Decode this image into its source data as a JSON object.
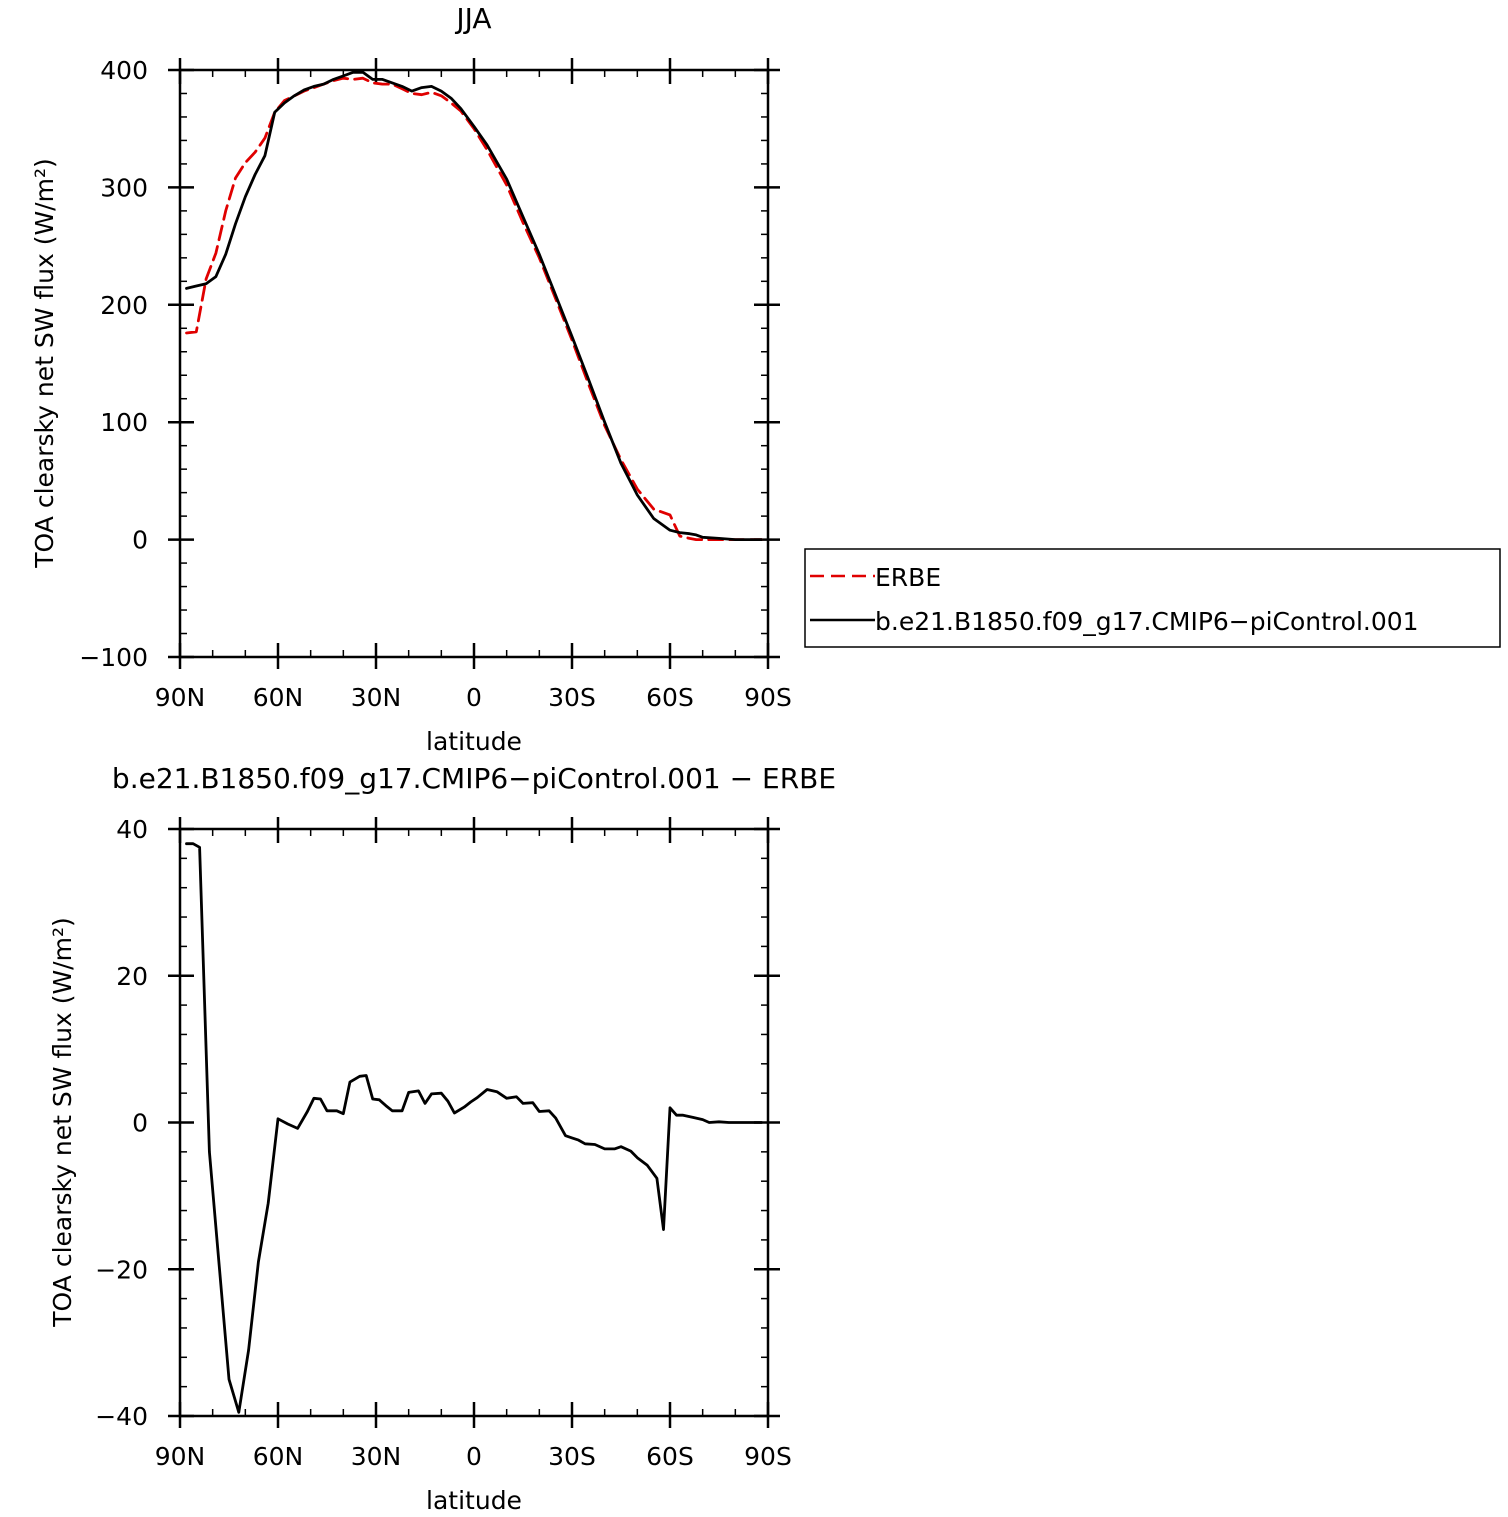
{
  "chart_data": [
    {
      "type": "line",
      "title": "JJA",
      "xlabel": "latitude",
      "ylabel": "TOA clearsky net SW flux (W/m²)",
      "xlim": [
        90,
        -90
      ],
      "ylim": [
        -100,
        400
      ],
      "xticks": [
        {
          "value": 90,
          "label": "90N"
        },
        {
          "value": 60,
          "label": "60N"
        },
        {
          "value": 30,
          "label": "30N"
        },
        {
          "value": 0,
          "label": "0"
        },
        {
          "value": -30,
          "label": "30S"
        },
        {
          "value": -60,
          "label": "60S"
        },
        {
          "value": -90,
          "label": "90S"
        }
      ],
      "yticks": [
        {
          "value": 400,
          "label": "400"
        },
        {
          "value": 300,
          "label": "300"
        },
        {
          "value": 200,
          "label": "200"
        },
        {
          "value": 100,
          "label": "100"
        },
        {
          "value": 0,
          "label": "0"
        },
        {
          "value": -100,
          "label": "−100"
        }
      ],
      "legend_position": "right",
      "series": [
        {
          "name": "ERBE",
          "color": "#e00000",
          "dash": "dashed",
          "x": [
            88,
            85,
            82,
            79,
            76,
            73,
            70,
            67,
            64,
            61,
            58,
            55,
            52,
            49,
            46,
            43,
            40,
            37,
            34,
            31,
            28,
            25,
            22,
            19,
            16,
            13,
            10,
            7,
            4,
            0,
            -4,
            -10,
            -15,
            -20,
            -25,
            -30,
            -35,
            -40,
            -45,
            -50,
            -55,
            -60,
            -63,
            -66,
            -68,
            -70,
            -75,
            -80,
            -85,
            -88
          ],
          "y": [
            176,
            177,
            222,
            244,
            280,
            308,
            321,
            330,
            342,
            364,
            374,
            378,
            382,
            385,
            388,
            391,
            393,
            392,
            393,
            389,
            388,
            388,
            384,
            380,
            379,
            381,
            378,
            372,
            365,
            350,
            332,
            302,
            270,
            240,
            205,
            170,
            133,
            97,
            68,
            43,
            26,
            21,
            3,
            1,
            0,
            0,
            0,
            0,
            0,
            0
          ]
        },
        {
          "name": "b.e21.B1850.f09_g17.CMIP6−piControl.001",
          "color": "#000000",
          "dash": "solid",
          "x": [
            88,
            85,
            82,
            79,
            76,
            73,
            70,
            67,
            64,
            61,
            58,
            55,
            52,
            49,
            46,
            43,
            40,
            37,
            34,
            31,
            28,
            25,
            22,
            19,
            16,
            13,
            10,
            7,
            4,
            0,
            -4,
            -10,
            -15,
            -20,
            -25,
            -30,
            -35,
            -40,
            -45,
            -50,
            -55,
            -60,
            -63,
            -66,
            -68,
            -70,
            -75,
            -80,
            -85,
            -88
          ],
          "y": [
            214,
            216,
            218,
            224,
            243,
            269,
            292,
            311,
            327,
            364,
            372,
            378,
            383,
            386,
            388,
            392,
            395,
            398,
            398,
            392,
            392,
            389,
            386,
            382,
            385,
            386,
            382,
            376,
            367,
            352,
            336,
            307,
            275,
            243,
            208,
            173,
            137,
            100,
            65,
            38,
            18,
            8,
            6,
            5,
            4,
            2,
            1,
            0,
            0,
            0
          ]
        }
      ]
    },
    {
      "type": "line",
      "title": "b.e21.B1850.f09_g17.CMIP6−piControl.001  −  ERBE",
      "xlabel": "latitude",
      "ylabel": "TOA clearsky net SW flux (W/m²)",
      "xlim": [
        90,
        -90
      ],
      "ylim": [
        -40,
        40
      ],
      "xticks": [
        {
          "value": 90,
          "label": "90N"
        },
        {
          "value": 60,
          "label": "60N"
        },
        {
          "value": 30,
          "label": "30N"
        },
        {
          "value": 0,
          "label": "0"
        },
        {
          "value": -30,
          "label": "30S"
        },
        {
          "value": -60,
          "label": "60S"
        },
        {
          "value": -90,
          "label": "90S"
        }
      ],
      "yticks": [
        {
          "value": 40,
          "label": "40"
        },
        {
          "value": 20,
          "label": "20"
        },
        {
          "value": 0,
          "label": "0"
        },
        {
          "value": -20,
          "label": "−20"
        },
        {
          "value": -40,
          "label": "−40"
        }
      ],
      "series": [
        {
          "color": "#000000",
          "dash": "solid",
          "x": [
            88,
            86,
            84,
            81,
            78,
            75,
            72,
            69,
            66,
            63,
            60,
            57,
            54,
            51,
            49,
            47,
            45,
            42,
            40,
            38,
            35,
            33,
            31,
            29,
            27,
            25,
            22,
            20,
            17,
            15,
            13,
            10,
            8,
            6,
            3,
            1,
            -1,
            -4,
            -7,
            -10,
            -13,
            -15,
            -18,
            -20,
            -23,
            -25,
            -28,
            -30,
            -32,
            -34,
            -37,
            -40,
            -43,
            -45,
            -48,
            -50,
            -53,
            -56,
            -58,
            -60,
            -62,
            -64,
            -67,
            -70,
            -72,
            -75,
            -78,
            -80,
            -83,
            -86,
            -88
          ],
          "y": [
            38,
            38,
            37.5,
            -4,
            -19.5,
            -35,
            -39.5,
            -31,
            -19,
            -11,
            0.5,
            -0.2,
            -0.8,
            1.5,
            3.3,
            3.2,
            1.6,
            1.6,
            1.2,
            5.5,
            6.3,
            6.4,
            3.2,
            3.1,
            2.3,
            1.6,
            1.6,
            4.1,
            4.3,
            2.6,
            3.9,
            4.0,
            2.9,
            1.3,
            2.1,
            2.8,
            3.4,
            4.5,
            4.2,
            3.3,
            3.5,
            2.6,
            2.7,
            1.5,
            1.6,
            0.6,
            -1.8,
            -2.1,
            -2.4,
            -2.9,
            -3.0,
            -3.6,
            -3.6,
            -3.3,
            -3.9,
            -4.8,
            -5.8,
            -7.6,
            -14.6,
            2.0,
            1.0,
            1.0,
            0.7,
            0.4,
            0.0,
            0.1,
            0.0,
            0.0,
            0.0,
            0.0,
            0.0
          ]
        }
      ]
    }
  ]
}
